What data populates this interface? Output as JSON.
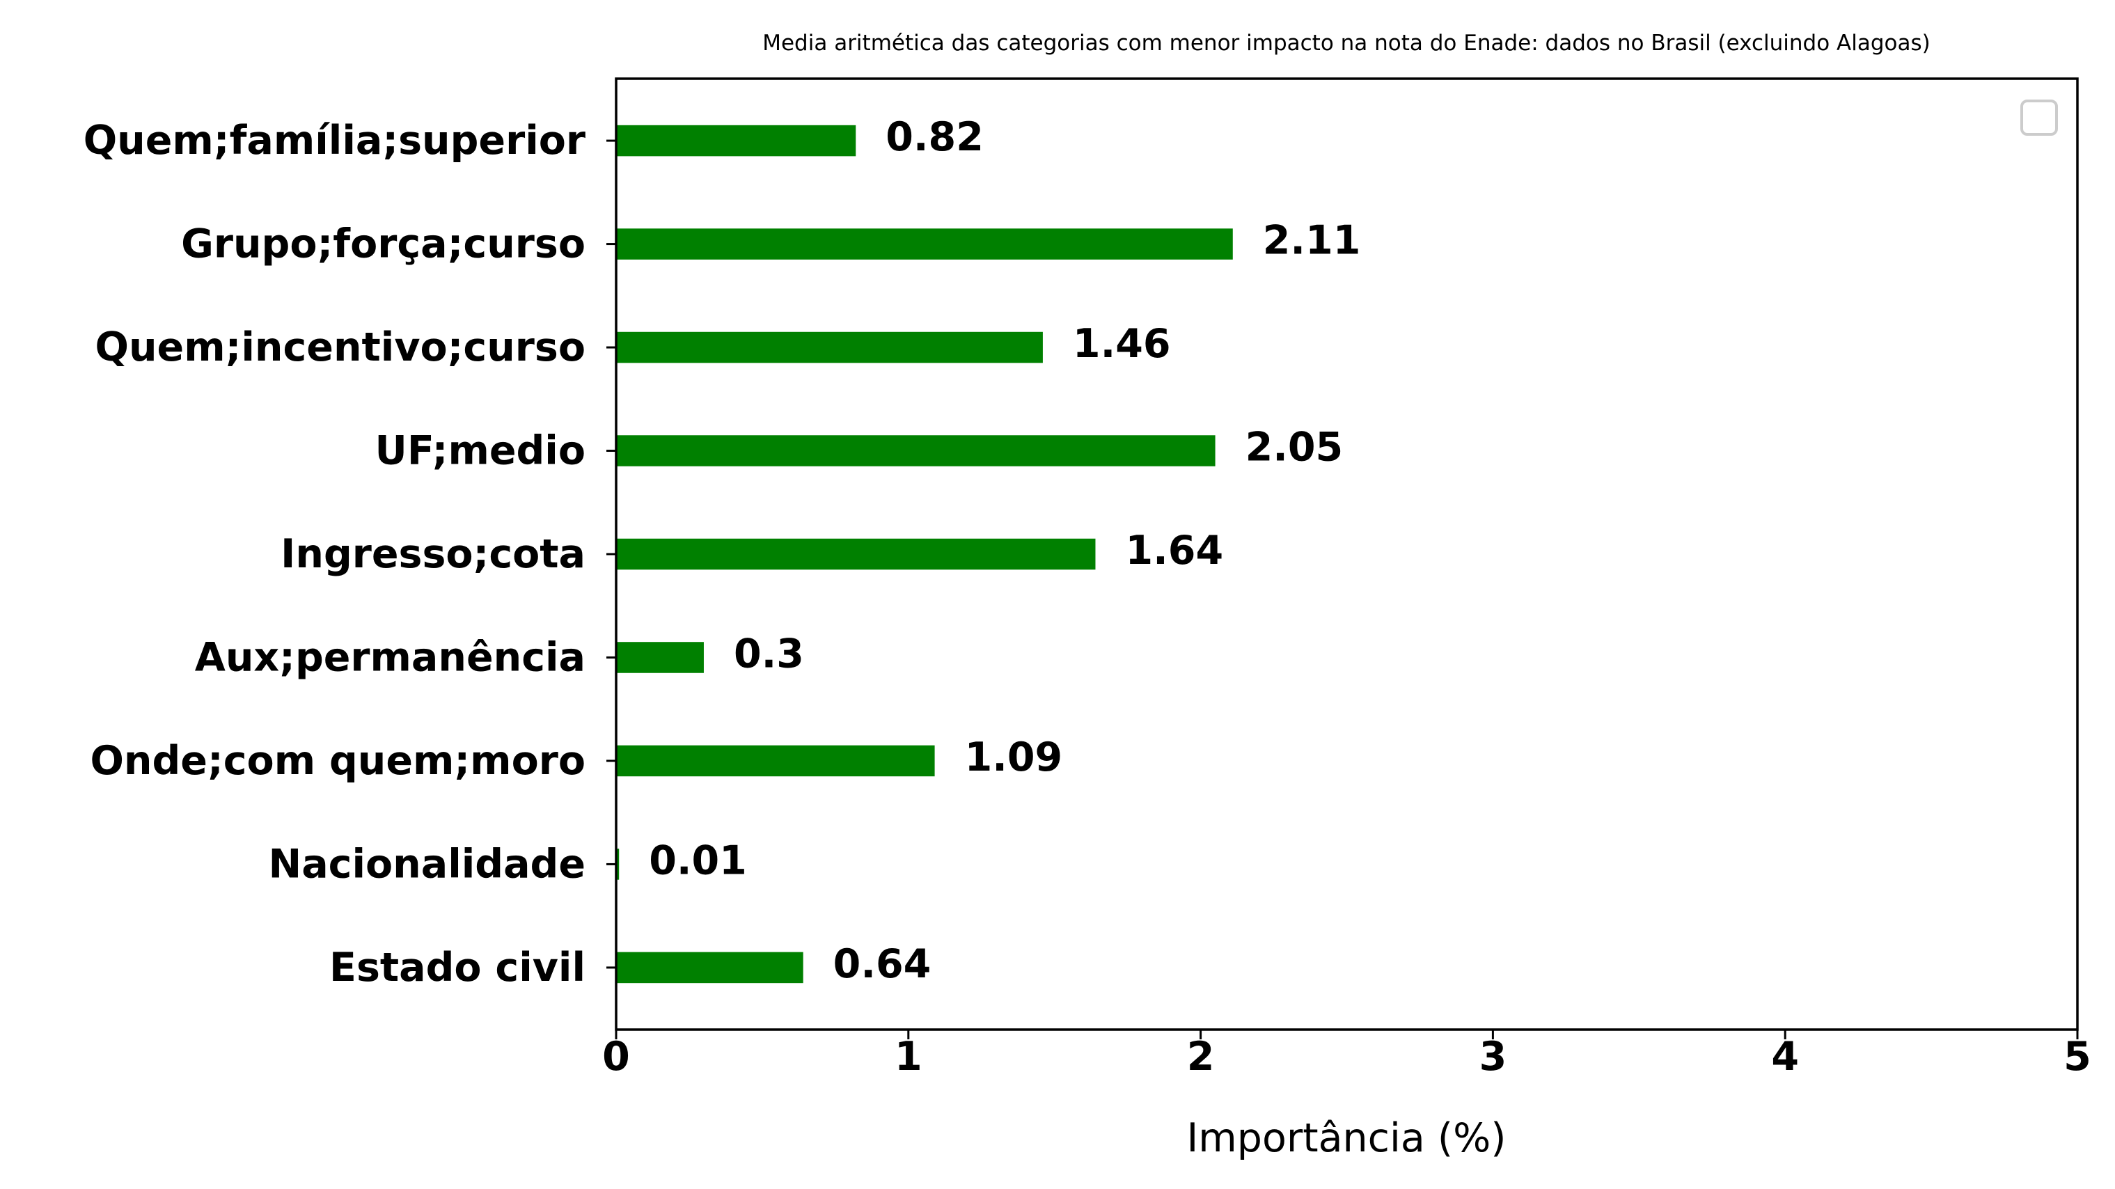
{
  "chart_data": {
    "type": "bar",
    "orientation": "horizontal",
    "title": "Media aritmética das categorias com menor impacto na nota do Enade: dados no Brasil (excluindo Alagoas)",
    "xlabel": "Importância (%)",
    "ylabel": "",
    "categories": [
      "Quem;família;superior",
      "Grupo;força;curso",
      "Quem;incentivo;curso",
      "UF;medio",
      "Ingresso;cota",
      "Aux;permanência",
      "Onde;com quem;moro",
      "Nacionalidade",
      "Estado civil"
    ],
    "values": [
      0.82,
      2.11,
      1.46,
      2.05,
      1.64,
      0.3,
      1.09,
      0.01,
      0.64
    ],
    "value_labels": [
      "0.82",
      "2.11",
      "1.46",
      "2.05",
      "1.64",
      "0.3",
      "1.09",
      "0.01",
      "0.64"
    ],
    "xlim": [
      0,
      5
    ],
    "xticks": [
      "0",
      "1",
      "2",
      "3",
      "4",
      "5"
    ],
    "bar_color": "#008000",
    "grid": false,
    "legend": {
      "placement": "top-right",
      "entries": []
    }
  }
}
